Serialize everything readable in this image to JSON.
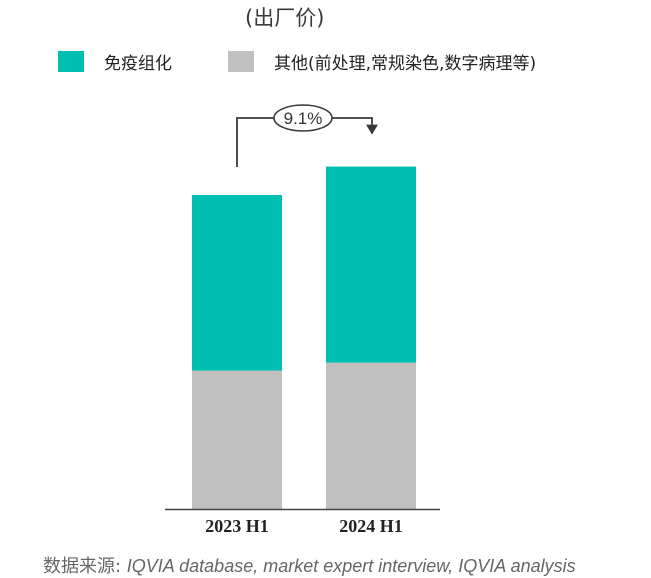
{
  "subtitle": "(出厂价)",
  "legend": [
    {
      "label": "免疫组化",
      "color": "#00bfb2"
    },
    {
      "label": "其他(前处理,常规染色,数字病理等)",
      "color": "#c0c0c0"
    }
  ],
  "chart_data": {
    "type": "bar",
    "stacked": true,
    "categories": [
      "2023 H1",
      "2024 H1"
    ],
    "series": [
      {
        "name": "其他(前处理,常规染色,数字病理等)",
        "color": "#c0c0c0",
        "values": [
          34.6,
          36.6
        ]
      },
      {
        "name": "免疫组化",
        "color": "#00bfb2",
        "values": [
          43.9,
          49.0
        ]
      }
    ],
    "ylim": [
      0,
      100
    ],
    "growth_annotation": {
      "text": "9.1%",
      "from": "2023 H1",
      "to": "2024 H1"
    },
    "title": "(出厂价)",
    "xlabel": "",
    "ylabel": ""
  },
  "source": {
    "prefix": "数据来源: ",
    "text": "IQVIA database, market expert interview, IQVIA analysis"
  }
}
